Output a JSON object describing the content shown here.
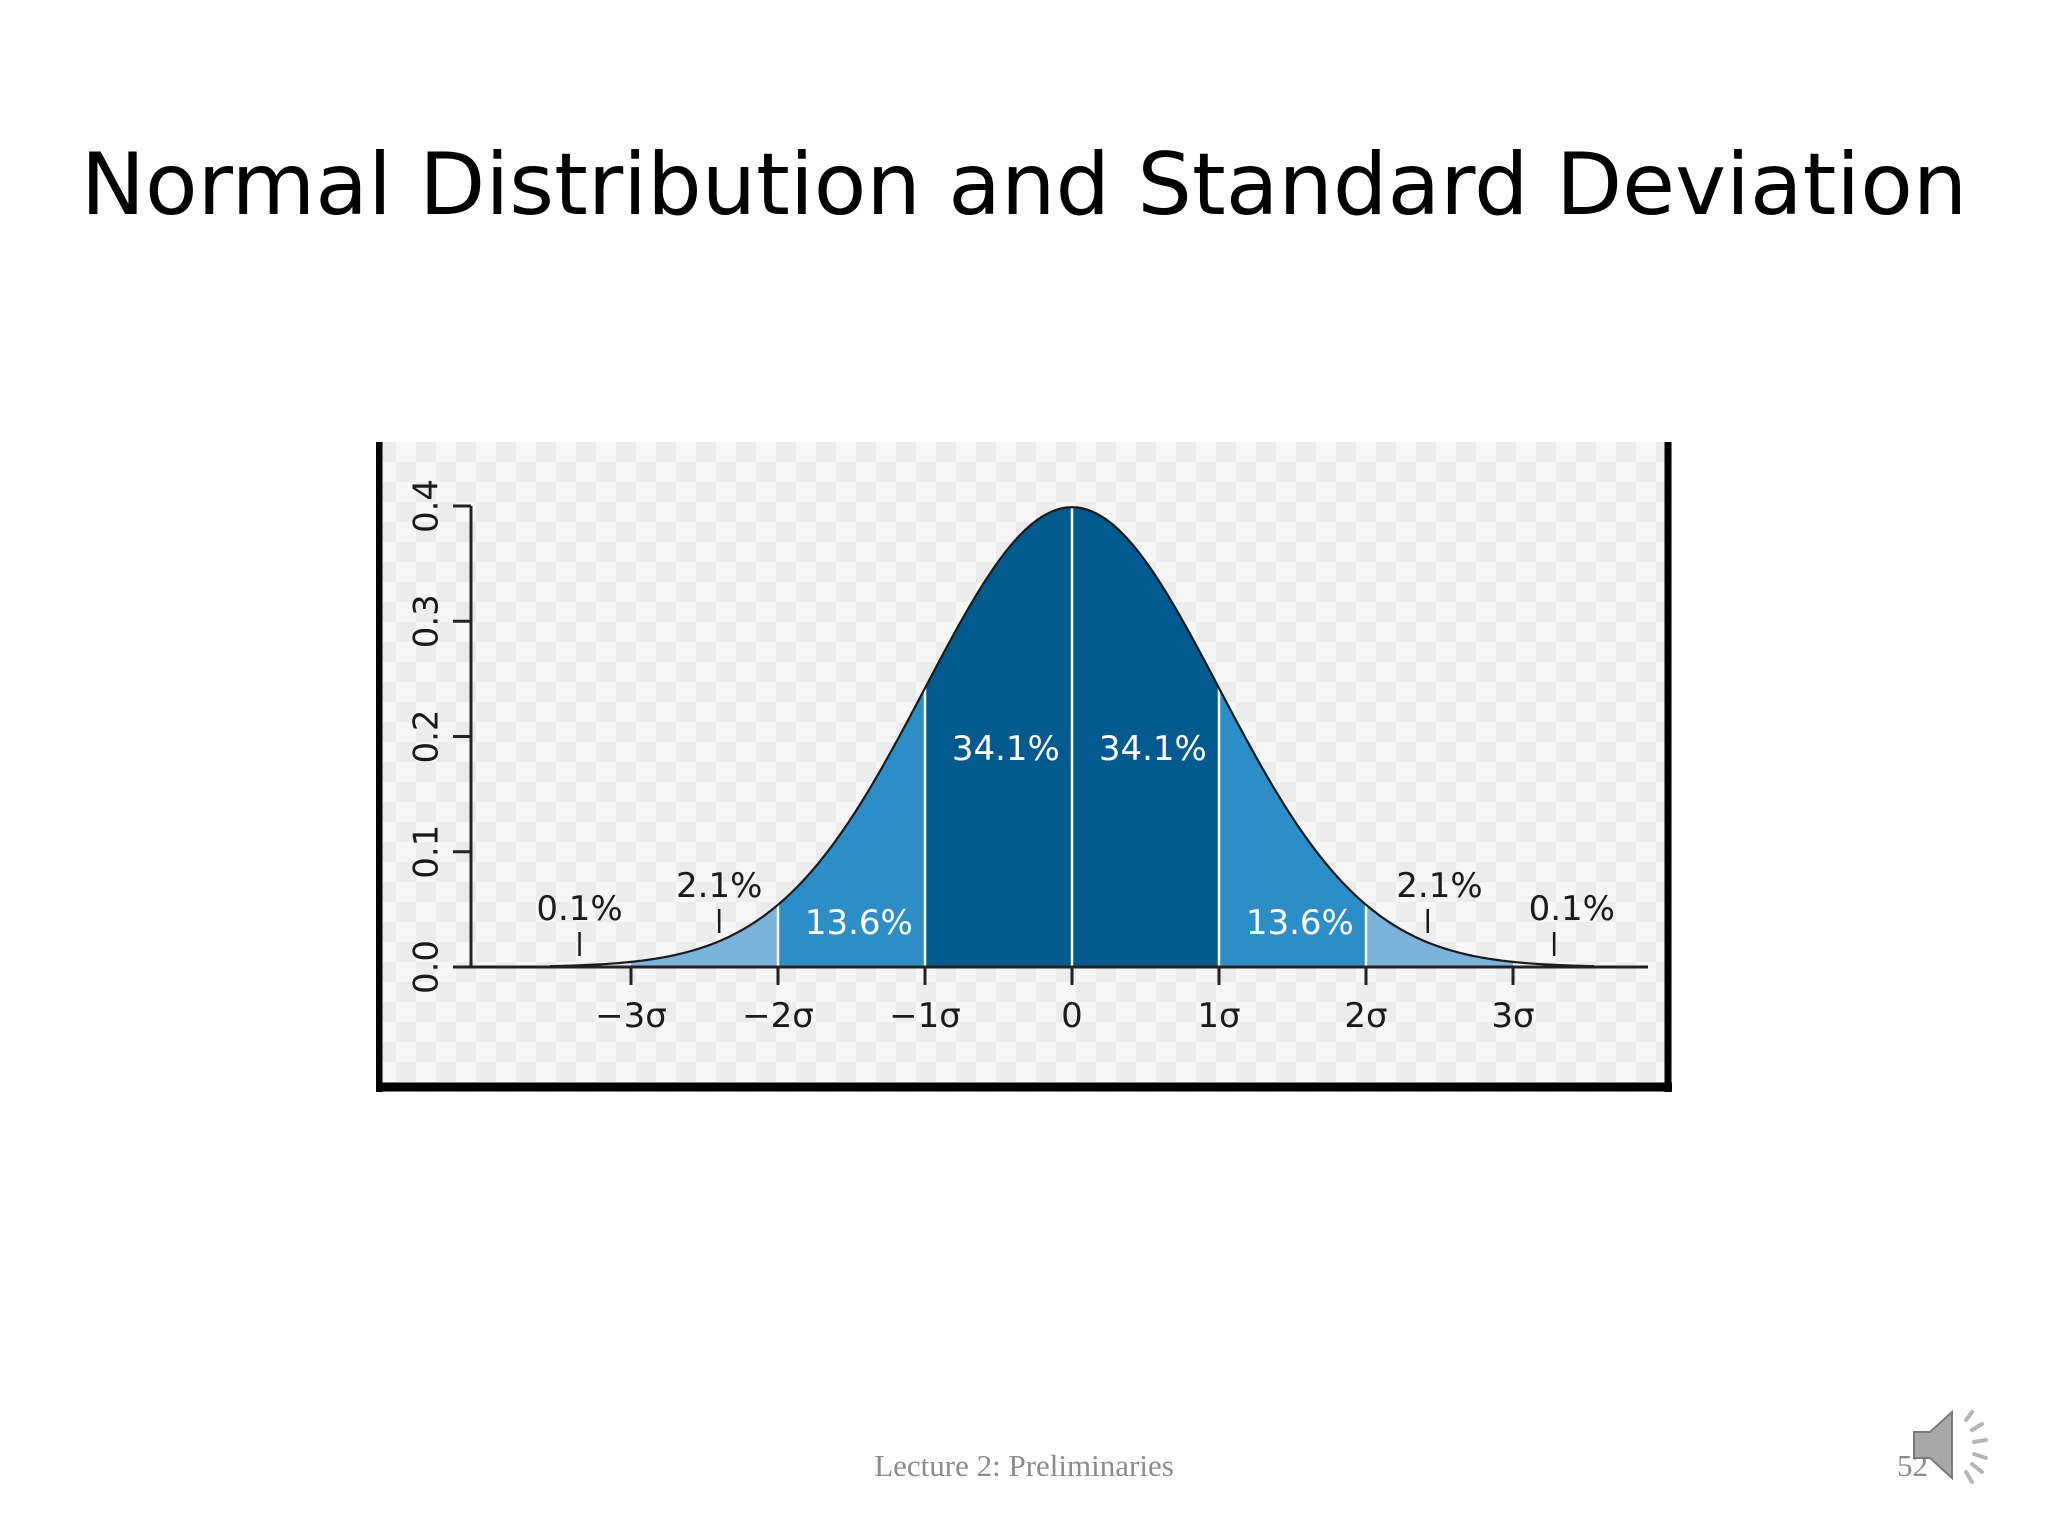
{
  "slide": {
    "title": "Normal Distribution and Standard Deviation",
    "footer": "Lecture 2: Preliminaries",
    "page_number": "52",
    "audio_icon": "speaker-icon"
  },
  "colors": {
    "dark_band": "#035a8f",
    "mid_band": "#2d8ec7",
    "light_band": "#7cb3dd",
    "curve": "#1a1a1a",
    "frame": "#000000"
  },
  "chart_data": {
    "type": "area",
    "function": "standard normal probability density",
    "xlim": [
      -4,
      4
    ],
    "ylim": [
      0,
      0.4
    ],
    "x_ticks": [
      -3,
      -2,
      -1,
      0,
      1,
      2,
      3
    ],
    "x_tick_labels": [
      "−3σ",
      "−2σ",
      "−1σ",
      "0",
      "1σ",
      "2σ",
      "3σ"
    ],
    "y_ticks": [
      0.0,
      0.1,
      0.2,
      0.3,
      0.4
    ],
    "y_tick_labels": [
      "0.0",
      "0.1",
      "0.2",
      "0.3",
      "0.4"
    ],
    "regions": [
      {
        "from": -4,
        "to": -3,
        "percent": 0.1,
        "label": "0.1%",
        "color": "none"
      },
      {
        "from": -3,
        "to": -2,
        "percent": 2.1,
        "label": "2.1%",
        "color": "#7cb3dd"
      },
      {
        "from": -2,
        "to": -1,
        "percent": 13.6,
        "label": "13.6%",
        "color": "#2d8ec7"
      },
      {
        "from": -1,
        "to": 0,
        "percent": 34.1,
        "label": "34.1%",
        "color": "#035a8f"
      },
      {
        "from": 0,
        "to": 1,
        "percent": 34.1,
        "label": "34.1%",
        "color": "#035a8f"
      },
      {
        "from": 1,
        "to": 2,
        "percent": 13.6,
        "label": "13.6%",
        "color": "#2d8ec7"
      },
      {
        "from": 2,
        "to": 3,
        "percent": 2.1,
        "label": "2.1%",
        "color": "#7cb3dd"
      },
      {
        "from": 3,
        "to": 4,
        "percent": 0.1,
        "label": "0.1%",
        "color": "none"
      }
    ],
    "grid": false,
    "legend": "none"
  }
}
